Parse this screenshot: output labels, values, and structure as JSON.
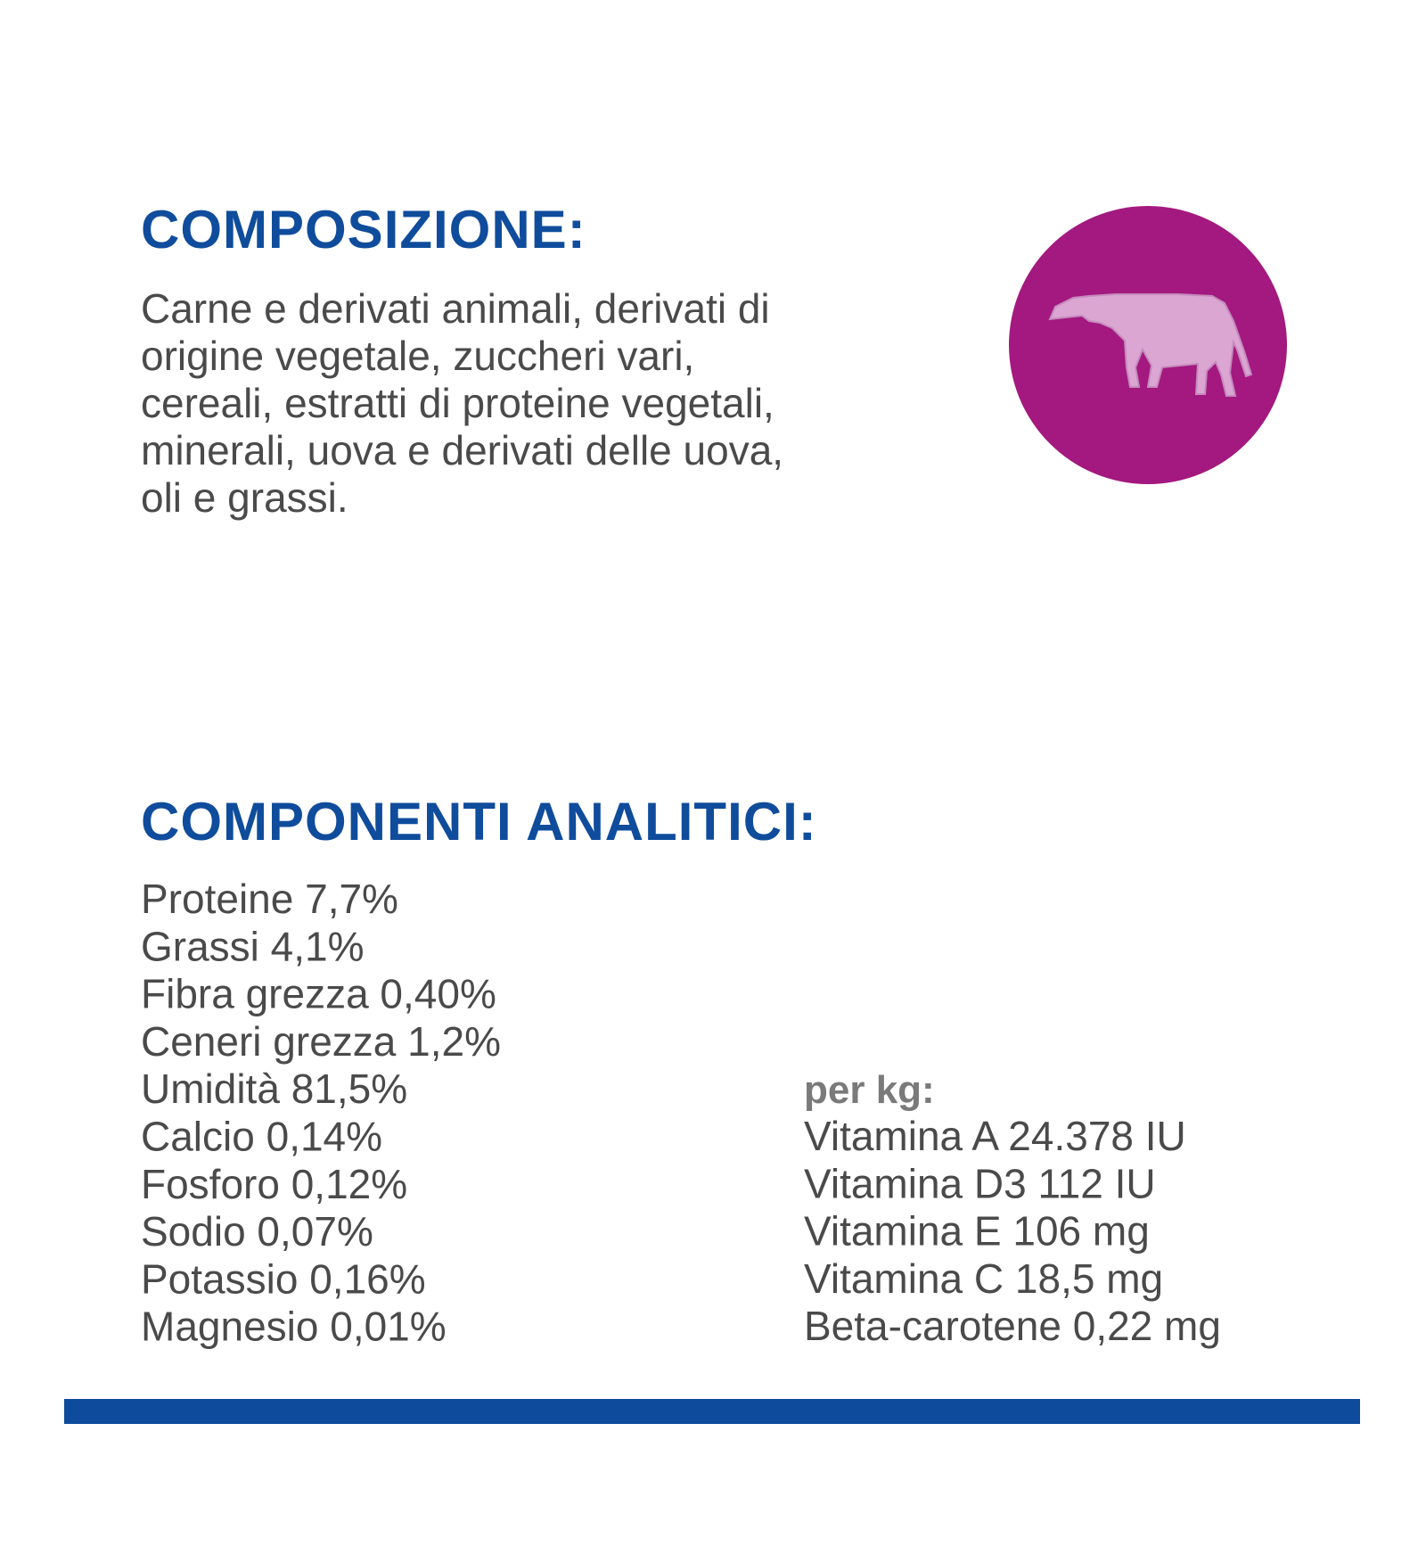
{
  "composition": {
    "title": "COMPOSIZIONE:",
    "lines": [
      "Carne e derivati animali, derivati di",
      "origine vegetale, zuccheri vari,",
      "cereali, estratti di proteine vegetali,",
      "minerali, uova e derivati delle uova,",
      "oli e grassi."
    ]
  },
  "analytics": {
    "title": "COMPONENTI ANALITICI:",
    "items": [
      "Proteine 7,7%",
      "Grassi 4,1%",
      "Fibra grezza 0,40%",
      "Ceneri grezza 1,2%",
      "Umidità 81,5%",
      "Calcio 0,14%",
      "Fosforo 0,12%",
      "Sodio 0,07%",
      "Potassio 0,16%",
      "Magnesio 0,01%"
    ],
    "per_kg": {
      "label": "per kg:",
      "items": [
        "Vitamina A 24.378 IU",
        "Vitamina D3 112 IU",
        "Vitamina E 106 mg",
        "Vitamina C 18,5 mg",
        "Beta-carotene 0,22 mg"
      ]
    }
  }
}
